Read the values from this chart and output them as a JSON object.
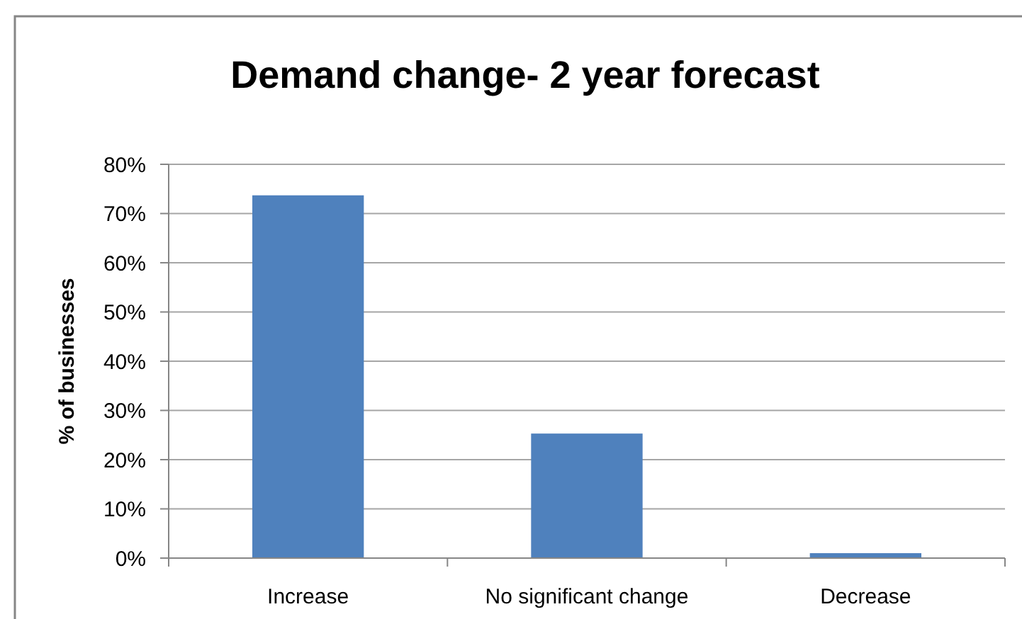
{
  "chart_data": {
    "type": "bar",
    "title": "Demand change- 2 year forecast",
    "ylabel": "% of businesses",
    "categories": [
      "Increase",
      "No significant change",
      "Decrease"
    ],
    "values": [
      73.7,
      25.3,
      1
    ],
    "color": "#4f81bd",
    "ylim": [
      0,
      80
    ],
    "yticks": [
      {
        "value": 0,
        "label": "0%"
      },
      {
        "value": 10,
        "label": "10%"
      },
      {
        "value": 20,
        "label": "20%"
      },
      {
        "value": 30,
        "label": "30%"
      },
      {
        "value": 40,
        "label": "40%"
      },
      {
        "value": 50,
        "label": "50%"
      },
      {
        "value": 60,
        "label": "60%"
      },
      {
        "value": 70,
        "label": "70%"
      },
      {
        "value": 80,
        "label": "80%"
      }
    ],
    "grid": "y"
  }
}
